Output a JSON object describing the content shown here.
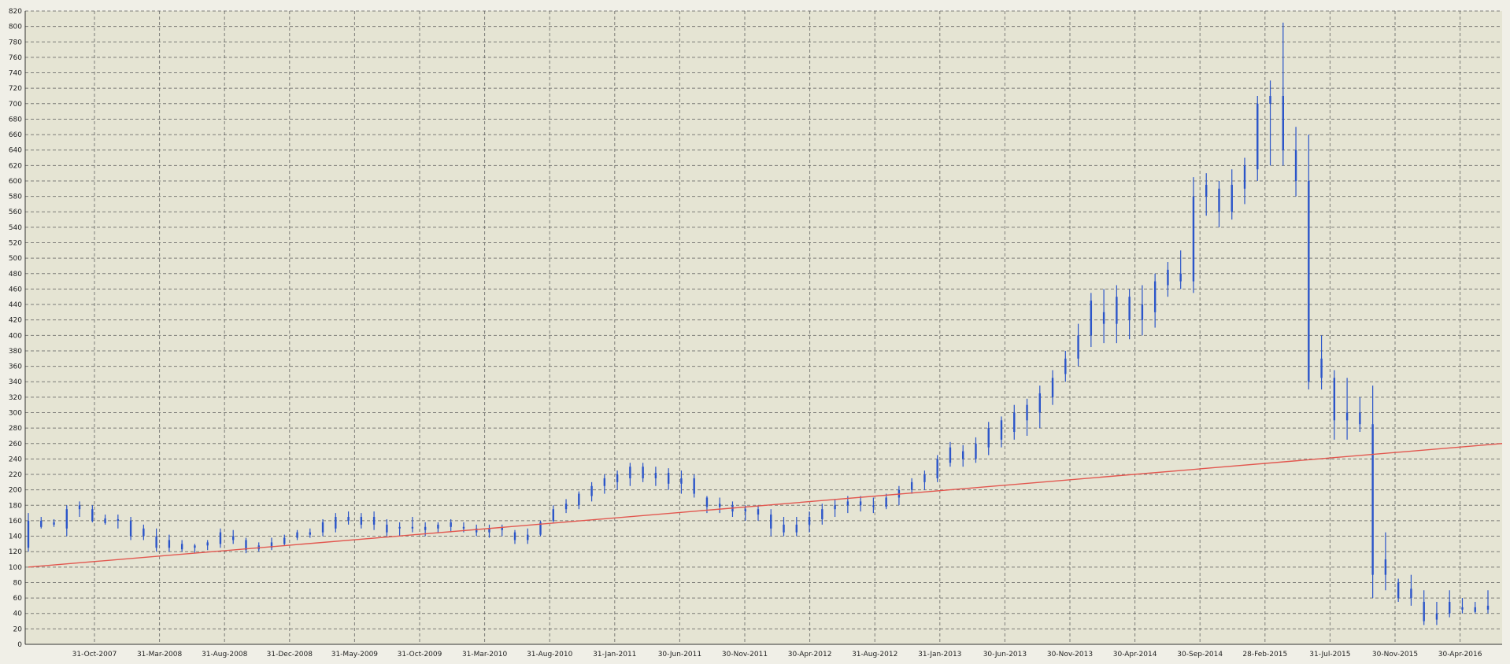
{
  "chart_data": {
    "type": "candlestick",
    "title": "",
    "xlabel": "",
    "ylabel": "",
    "ylim": [
      0,
      820
    ],
    "y_ticks": [
      0,
      20,
      40,
      60,
      80,
      100,
      120,
      140,
      160,
      180,
      200,
      220,
      240,
      260,
      280,
      300,
      320,
      340,
      360,
      380,
      400,
      420,
      440,
      460,
      480,
      500,
      520,
      540,
      560,
      580,
      600,
      620,
      640,
      660,
      680,
      700,
      720,
      740,
      760,
      780,
      800,
      820
    ],
    "x_tick_labels": [
      "31-Oct-2007",
      "31-Mar-2008",
      "31-Aug-2008",
      "31-Dec-2008",
      "31-May-2009",
      "31-Oct-2009",
      "31-Mar-2010",
      "31-Aug-2010",
      "31-Jan-2011",
      "30-Jun-2011",
      "30-Nov-2011",
      "30-Apr-2012",
      "31-Aug-2012",
      "31-Jan-2013",
      "30-Jun-2013",
      "30-Nov-2013",
      "30-Apr-2014",
      "30-Sep-2014",
      "28-Feb-2015",
      "31-Jul-2015",
      "30-Nov-2015",
      "30-Apr-2016"
    ],
    "grid": true,
    "series": [
      {
        "type": "candlestick",
        "color": "#2b55c9",
        "points": [
          {
            "low": 120,
            "high": 170,
            "open": 125,
            "close": 160
          },
          {
            "low": 150,
            "high": 165,
            "open": 152,
            "close": 160
          },
          {
            "low": 152,
            "high": 162,
            "open": 155,
            "close": 158
          },
          {
            "low": 140,
            "high": 180,
            "open": 150,
            "close": 175
          },
          {
            "low": 165,
            "high": 185,
            "open": 175,
            "close": 180
          },
          {
            "low": 158,
            "high": 180,
            "open": 175,
            "close": 160
          },
          {
            "low": 155,
            "high": 168,
            "open": 163,
            "close": 157
          },
          {
            "low": 150,
            "high": 168,
            "open": 160,
            "close": 162
          },
          {
            "low": 135,
            "high": 165,
            "open": 160,
            "close": 140
          },
          {
            "low": 135,
            "high": 155,
            "open": 150,
            "close": 140
          },
          {
            "low": 120,
            "high": 150,
            "open": 140,
            "close": 125
          },
          {
            "low": 120,
            "high": 142,
            "open": 135,
            "close": 125
          },
          {
            "low": 120,
            "high": 135,
            "open": 130,
            "close": 123
          },
          {
            "low": 118,
            "high": 130,
            "open": 125,
            "close": 128
          },
          {
            "low": 122,
            "high": 135,
            "open": 128,
            "close": 132
          },
          {
            "low": 125,
            "high": 150,
            "open": 130,
            "close": 145
          },
          {
            "low": 130,
            "high": 148,
            "open": 140,
            "close": 135
          },
          {
            "low": 118,
            "high": 138,
            "open": 135,
            "close": 122
          },
          {
            "low": 120,
            "high": 132,
            "open": 123,
            "close": 128
          },
          {
            "low": 122,
            "high": 138,
            "open": 125,
            "close": 132
          },
          {
            "low": 128,
            "high": 142,
            "open": 130,
            "close": 138
          },
          {
            "low": 135,
            "high": 148,
            "open": 138,
            "close": 145
          },
          {
            "low": 138,
            "high": 150,
            "open": 142,
            "close": 145
          },
          {
            "low": 140,
            "high": 162,
            "open": 145,
            "close": 158
          },
          {
            "low": 145,
            "high": 170,
            "open": 150,
            "close": 165
          },
          {
            "low": 155,
            "high": 172,
            "open": 160,
            "close": 165
          },
          {
            "low": 150,
            "high": 170,
            "open": 165,
            "close": 155
          },
          {
            "low": 148,
            "high": 172,
            "open": 165,
            "close": 155
          },
          {
            "low": 140,
            "high": 162,
            "open": 155,
            "close": 145
          },
          {
            "low": 140,
            "high": 158,
            "open": 150,
            "close": 152
          },
          {
            "low": 145,
            "high": 165,
            "open": 152,
            "close": 150
          },
          {
            "low": 140,
            "high": 158,
            "open": 152,
            "close": 148
          },
          {
            "low": 145,
            "high": 158,
            "open": 150,
            "close": 155
          },
          {
            "low": 145,
            "high": 162,
            "open": 152,
            "close": 158
          },
          {
            "low": 145,
            "high": 158,
            "open": 152,
            "close": 150
          },
          {
            "low": 140,
            "high": 155,
            "open": 150,
            "close": 145
          },
          {
            "low": 138,
            "high": 155,
            "open": 145,
            "close": 150
          },
          {
            "low": 140,
            "high": 155,
            "open": 148,
            "close": 152
          },
          {
            "low": 130,
            "high": 148,
            "open": 145,
            "close": 135
          },
          {
            "low": 130,
            "high": 150,
            "open": 135,
            "close": 142
          },
          {
            "low": 140,
            "high": 160,
            "open": 142,
            "close": 158
          },
          {
            "low": 158,
            "high": 180,
            "open": 160,
            "close": 175
          },
          {
            "low": 170,
            "high": 188,
            "open": 175,
            "close": 182
          },
          {
            "low": 175,
            "high": 198,
            "open": 180,
            "close": 195
          },
          {
            "low": 185,
            "high": 210,
            "open": 192,
            "close": 205
          },
          {
            "low": 195,
            "high": 220,
            "open": 205,
            "close": 215
          },
          {
            "low": 200,
            "high": 225,
            "open": 210,
            "close": 220
          },
          {
            "low": 205,
            "high": 235,
            "open": 215,
            "close": 230
          },
          {
            "low": 210,
            "high": 235,
            "open": 230,
            "close": 215
          },
          {
            "low": 205,
            "high": 230,
            "open": 215,
            "close": 222
          },
          {
            "low": 200,
            "high": 228,
            "open": 222,
            "close": 208
          },
          {
            "low": 195,
            "high": 225,
            "open": 208,
            "close": 215
          },
          {
            "low": 190,
            "high": 220,
            "open": 215,
            "close": 195
          },
          {
            "low": 170,
            "high": 192,
            "open": 190,
            "close": 178
          },
          {
            "low": 170,
            "high": 190,
            "open": 178,
            "close": 182
          },
          {
            "low": 165,
            "high": 185,
            "open": 180,
            "close": 172
          },
          {
            "low": 160,
            "high": 180,
            "open": 172,
            "close": 175
          },
          {
            "low": 160,
            "high": 180,
            "open": 175,
            "close": 168
          },
          {
            "low": 140,
            "high": 175,
            "open": 168,
            "close": 150
          },
          {
            "low": 140,
            "high": 165,
            "open": 155,
            "close": 145
          },
          {
            "low": 140,
            "high": 165,
            "open": 145,
            "close": 155
          },
          {
            "low": 145,
            "high": 172,
            "open": 155,
            "close": 165
          },
          {
            "low": 155,
            "high": 182,
            "open": 162,
            "close": 175
          },
          {
            "low": 165,
            "high": 188,
            "open": 175,
            "close": 180
          },
          {
            "low": 170,
            "high": 192,
            "open": 180,
            "close": 185
          },
          {
            "low": 172,
            "high": 192,
            "open": 185,
            "close": 180
          },
          {
            "low": 170,
            "high": 190,
            "open": 180,
            "close": 178
          },
          {
            "low": 175,
            "high": 195,
            "open": 178,
            "close": 190
          },
          {
            "low": 180,
            "high": 205,
            "open": 190,
            "close": 200
          },
          {
            "low": 195,
            "high": 215,
            "open": 200,
            "close": 210
          },
          {
            "low": 200,
            "high": 225,
            "open": 210,
            "close": 220
          },
          {
            "low": 210,
            "high": 245,
            "open": 215,
            "close": 240
          },
          {
            "low": 230,
            "high": 262,
            "open": 235,
            "close": 255
          },
          {
            "low": 230,
            "high": 258,
            "open": 250,
            "close": 240
          },
          {
            "low": 235,
            "high": 268,
            "open": 240,
            "close": 260
          },
          {
            "low": 245,
            "high": 288,
            "open": 255,
            "close": 280
          },
          {
            "low": 255,
            "high": 295,
            "open": 265,
            "close": 290
          },
          {
            "low": 265,
            "high": 310,
            "open": 275,
            "close": 300
          },
          {
            "low": 270,
            "high": 318,
            "open": 290,
            "close": 310
          },
          {
            "low": 280,
            "high": 335,
            "open": 300,
            "close": 325
          },
          {
            "low": 310,
            "high": 355,
            "open": 320,
            "close": 345
          },
          {
            "low": 340,
            "high": 380,
            "open": 350,
            "close": 370
          },
          {
            "low": 360,
            "high": 415,
            "open": 370,
            "close": 400
          },
          {
            "low": 385,
            "high": 455,
            "open": 400,
            "close": 445
          },
          {
            "low": 390,
            "high": 460,
            "open": 430,
            "close": 415
          },
          {
            "low": 390,
            "high": 465,
            "open": 415,
            "close": 450
          },
          {
            "low": 395,
            "high": 460,
            "open": 450,
            "close": 420
          },
          {
            "low": 400,
            "high": 465,
            "open": 420,
            "close": 440
          },
          {
            "low": 410,
            "high": 480,
            "open": 430,
            "close": 470
          },
          {
            "low": 450,
            "high": 495,
            "open": 465,
            "close": 485
          },
          {
            "low": 460,
            "high": 510,
            "open": 480,
            "close": 470
          },
          {
            "low": 455,
            "high": 605,
            "open": 470,
            "close": 580
          },
          {
            "low": 555,
            "high": 610,
            "open": 580,
            "close": 595
          },
          {
            "low": 540,
            "high": 600,
            "open": 590,
            "close": 560
          },
          {
            "low": 550,
            "high": 615,
            "open": 560,
            "close": 595
          },
          {
            "low": 570,
            "high": 630,
            "open": 590,
            "close": 620
          },
          {
            "low": 600,
            "high": 710,
            "open": 615,
            "close": 700
          },
          {
            "low": 620,
            "high": 730,
            "open": 700,
            "close": 710
          },
          {
            "low": 620,
            "high": 805,
            "open": 710,
            "close": 640
          },
          {
            "low": 580,
            "high": 670,
            "open": 640,
            "close": 600
          },
          {
            "low": 330,
            "high": 660,
            "open": 600,
            "close": 340
          },
          {
            "low": 330,
            "high": 400,
            "open": 345,
            "close": 370
          },
          {
            "low": 265,
            "high": 355,
            "open": 345,
            "close": 290
          },
          {
            "low": 265,
            "high": 345,
            "open": 290,
            "close": 300
          },
          {
            "low": 275,
            "high": 320,
            "open": 300,
            "close": 285
          },
          {
            "low": 60,
            "high": 335,
            "open": 285,
            "close": 90
          },
          {
            "low": 70,
            "high": 145,
            "open": 90,
            "close": 110
          },
          {
            "low": 55,
            "high": 85,
            "open": 80,
            "close": 60
          },
          {
            "low": 50,
            "high": 90,
            "open": 60,
            "close": 72
          },
          {
            "low": 25,
            "high": 70,
            "open": 55,
            "close": 30
          },
          {
            "low": 25,
            "high": 55,
            "open": 40,
            "close": 32
          },
          {
            "low": 35,
            "high": 70,
            "open": 40,
            "close": 55
          },
          {
            "low": 40,
            "high": 60,
            "open": 48,
            "close": 45
          },
          {
            "low": 40,
            "high": 55,
            "open": 42,
            "close": 48
          },
          {
            "low": 40,
            "high": 70,
            "open": 45,
            "close": 50
          }
        ]
      },
      {
        "type": "line",
        "color": "#e2574f",
        "start_value": 100,
        "end_value": 260
      }
    ]
  }
}
